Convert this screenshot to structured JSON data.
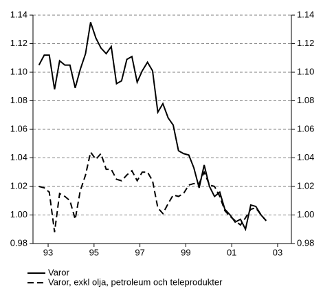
{
  "chart_data": {
    "type": "line",
    "x": [
      1993.1,
      1993.33,
      1993.55,
      1993.78,
      1994.0,
      1994.23,
      1994.45,
      1994.68,
      1994.9,
      1995.13,
      1995.35,
      1995.58,
      1995.8,
      1996.03,
      1996.25,
      1996.48,
      1996.7,
      1996.93,
      1997.15,
      1997.38,
      1997.6,
      1997.83,
      1998.05,
      1998.28,
      1998.5,
      1998.73,
      1998.95,
      1999.18,
      1999.4,
      1999.63,
      1999.85,
      2000.08,
      2000.3,
      2000.53,
      2000.75,
      2000.98,
      2001.2,
      2001.43,
      2001.65,
      2001.88,
      2002.1,
      2002.33,
      2002.55,
      2002.78,
      2003.0
    ],
    "series": [
      {
        "name": "Varor",
        "color": "#000000",
        "dash": "solid",
        "values": [
          1.105,
          1.112,
          1.112,
          1.088,
          1.108,
          1.105,
          1.105,
          1.089,
          1.102,
          1.113,
          1.135,
          1.124,
          1.117,
          1.113,
          1.118,
          1.092,
          1.094,
          1.109,
          1.111,
          1.093,
          1.101,
          1.107,
          1.101,
          1.072,
          1.078,
          1.068,
          1.063,
          1.045,
          1.043,
          1.042,
          1.033,
          1.019,
          1.035,
          1.02,
          1.013,
          1.016,
          1.004,
          1.0,
          0.995,
          0.997,
          0.99,
          1.007,
          1.006,
          1.0,
          0.996
        ]
      },
      {
        "name": "Varor, exkl olja, petroleum och teleprodukter",
        "color": "#000000",
        "dash": "dashed",
        "values": [
          1.02,
          1.019,
          1.016,
          0.988,
          1.015,
          1.013,
          1.01,
          0.997,
          1.017,
          1.028,
          1.044,
          1.039,
          1.043,
          1.032,
          1.032,
          1.025,
          1.024,
          1.028,
          1.031,
          1.024,
          1.03,
          1.03,
          1.024,
          1.005,
          1.001,
          1.008,
          1.014,
          1.013,
          1.015,
          1.021,
          1.022,
          1.022,
          1.03,
          1.021,
          1.02,
          1.013,
          1.003,
          0.999,
          0.996,
          0.993,
          0.998,
          1.004,
          1.005,
          1.0,
          0.996
        ]
      }
    ],
    "xlim": [
      1992.84,
      2004.1
    ],
    "xticks": [
      {
        "value": 1993.5,
        "label": "93"
      },
      {
        "value": 1995.5,
        "label": "95"
      },
      {
        "value": 1997.5,
        "label": "97"
      },
      {
        "value": 1999.5,
        "label": "99"
      },
      {
        "value": 2001.5,
        "label": "01"
      },
      {
        "value": 2003.5,
        "label": "03"
      }
    ],
    "ylim": [
      0.98,
      1.14
    ],
    "yticks": [
      {
        "value": 0.98,
        "label": "0.98"
      },
      {
        "value": 1.0,
        "label": "1.00"
      },
      {
        "value": 1.02,
        "label": "1.02"
      },
      {
        "value": 1.04,
        "label": "1.04"
      },
      {
        "value": 1.06,
        "label": "1.06"
      },
      {
        "value": 1.08,
        "label": "1.08"
      },
      {
        "value": 1.1,
        "label": "1.10"
      },
      {
        "value": 1.12,
        "label": "1.12"
      },
      {
        "value": 1.14,
        "label": "1.14"
      }
    ],
    "grid": true,
    "legend": "bottom"
  }
}
